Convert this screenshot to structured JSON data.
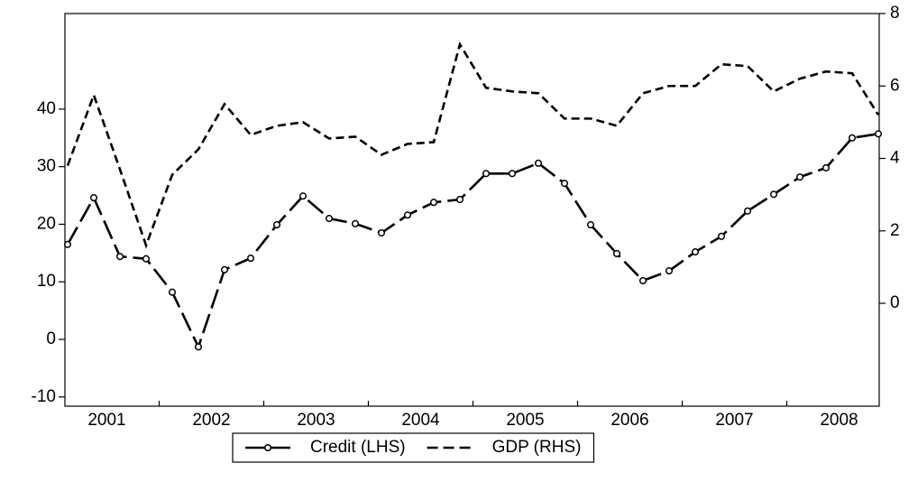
{
  "chart_data": {
    "type": "line",
    "categories": [
      null,
      null,
      "2001",
      null,
      null,
      null,
      "2002",
      null,
      null,
      null,
      "2003",
      null,
      null,
      null,
      "2004",
      null,
      null,
      null,
      "2005",
      null,
      null,
      null,
      "2006",
      null,
      null,
      null,
      "2007",
      null,
      null,
      null,
      "2008",
      null
    ],
    "series": [
      {
        "name": "Credit (LHS)",
        "color": "#000000",
        "axis": "y",
        "dash": "long",
        "marker": "circle",
        "values": [
          16.5,
          24.6,
          14.4,
          14.0,
          8.2,
          -1.3,
          12.1,
          14.1,
          19.9,
          24.9,
          21.0,
          20.1,
          18.5,
          21.6,
          23.8,
          24.3,
          28.8,
          28.8,
          30.6,
          27.1,
          19.9,
          14.9,
          10.2,
          11.9,
          15.2,
          17.9,
          22.3,
          25.2,
          28.2,
          29.8,
          35.0,
          35.7
        ]
      },
      {
        "name": "GDP (RHS)",
        "color": "#000000",
        "axis": "y2",
        "dash": "short",
        "marker": "none",
        "values": [
          3.8,
          5.75,
          3.7,
          1.6,
          3.55,
          4.25,
          5.5,
          4.65,
          4.9,
          5.0,
          4.55,
          4.6,
          4.1,
          4.4,
          4.45,
          7.15,
          5.95,
          5.85,
          5.8,
          5.1,
          5.1,
          4.9,
          5.8,
          6.0,
          6.0,
          6.6,
          6.55,
          5.85,
          6.2,
          6.4,
          6.35,
          5.2
        ]
      }
    ],
    "ylim": [
      -11.6,
      56.6
    ],
    "yticks": [
      -10,
      0,
      10,
      20,
      30,
      40
    ],
    "y2lim": [
      -2.84,
      8
    ],
    "y2ticks": [
      0,
      2,
      4,
      6,
      8
    ],
    "grid": false,
    "legend": "bottom"
  }
}
